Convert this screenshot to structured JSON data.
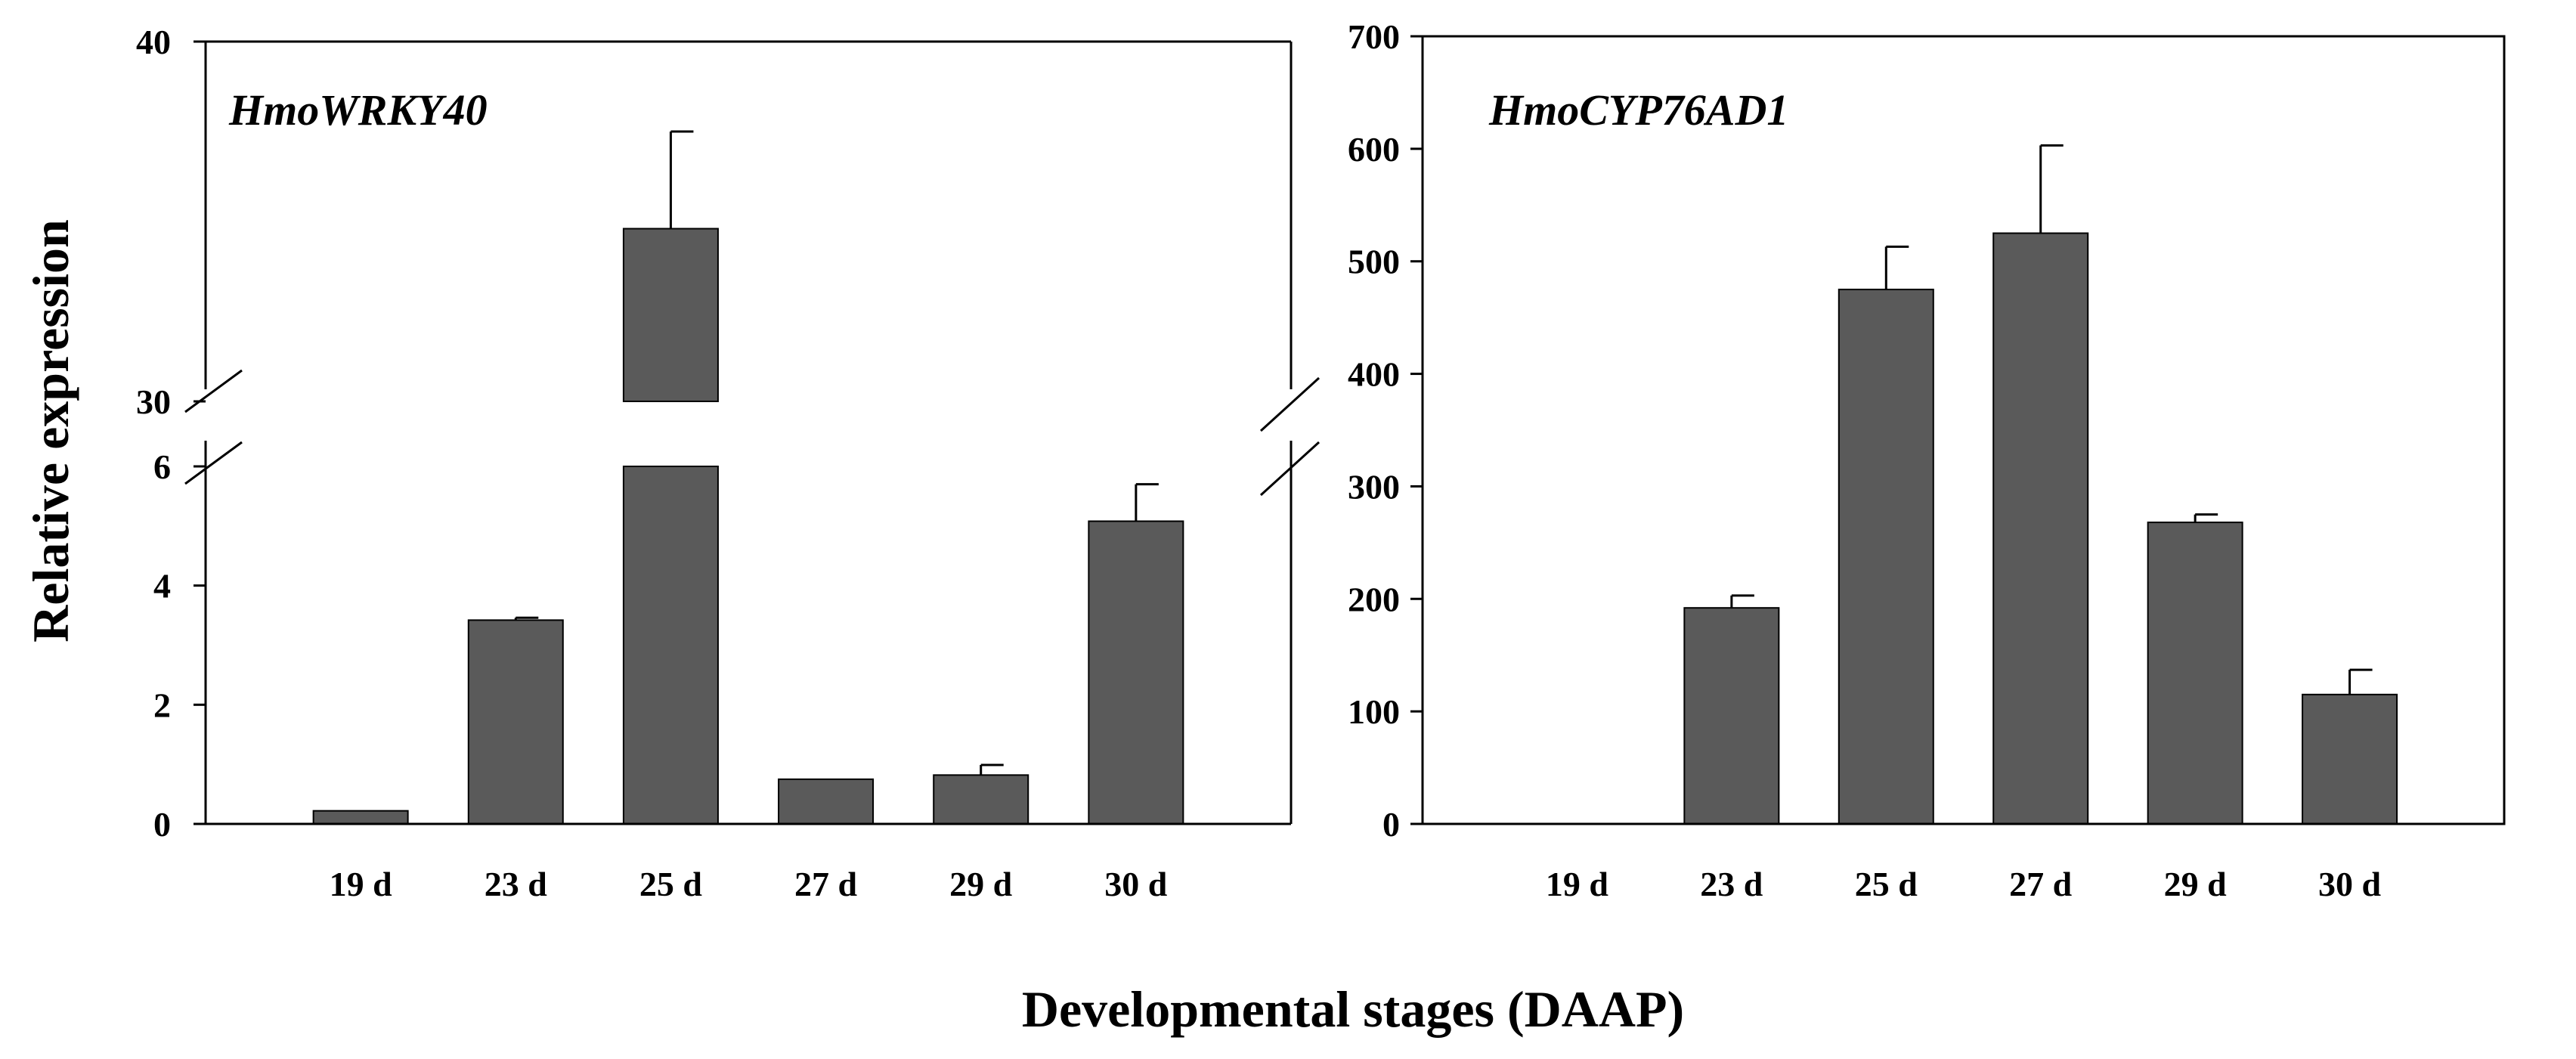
{
  "figure": {
    "ylabel": "Relative expression",
    "xlabel": "Developmental stages (DAAP)",
    "bar_color": "#5a5a5a"
  },
  "chart_data": [
    {
      "type": "bar",
      "title": "HmoWRKY40",
      "categories": [
        "19 d",
        "23 d",
        "25 d",
        "27 d",
        "29 d",
        "30 d"
      ],
      "values": [
        0.22,
        3.42,
        34.8,
        0.75,
        0.82,
        5.08
      ],
      "errors": [
        0,
        0.04,
        2.7,
        0,
        0.17,
        0.62
      ],
      "ylabel": "Relative expression",
      "xlabel": "Developmental stages (DAAP)",
      "axis_break": {
        "lower_range": [
          0,
          6
        ],
        "upper_range": [
          30,
          40
        ]
      },
      "ticks_lower": [
        0,
        2,
        4,
        6
      ],
      "ticks_upper": [
        30,
        40
      ],
      "tick_labels_lower": [
        "0",
        "2",
        "4",
        "6"
      ],
      "tick_labels_upper": [
        "30",
        "40"
      ]
    },
    {
      "type": "bar",
      "title": "HmoCYP76AD1",
      "categories": [
        "19 d",
        "23 d",
        "25 d",
        "27 d",
        "29 d",
        "30 d"
      ],
      "values": [
        0,
        192,
        475,
        525,
        268,
        115
      ],
      "errors": [
        0,
        11,
        38,
        78,
        7,
        22
      ],
      "ylim": [
        0,
        700
      ],
      "ticks": [
        0,
        100,
        200,
        300,
        400,
        500,
        600,
        700
      ],
      "tick_labels": [
        "0",
        "100",
        "200",
        "300",
        "400",
        "500",
        "600",
        "700"
      ]
    }
  ]
}
